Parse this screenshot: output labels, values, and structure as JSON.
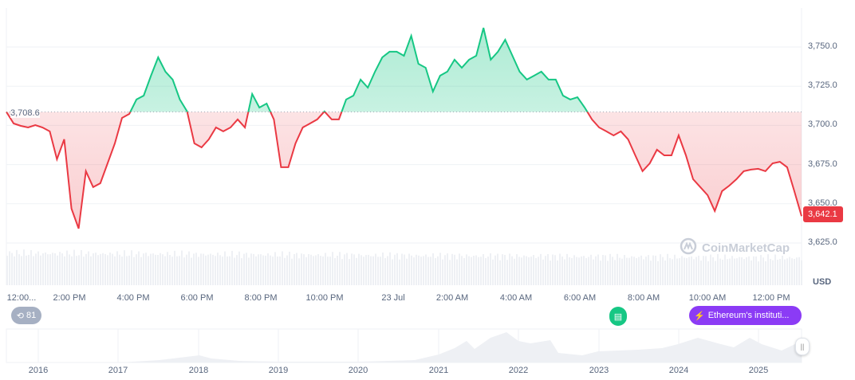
{
  "chart_data": {
    "type": "line",
    "currency_label": "USD",
    "baseline_value": 3708.6,
    "baseline_label": "3,708.6",
    "current_value": 3642.1,
    "current_label": "3,642.1",
    "ylim": [
      3615,
      3770
    ],
    "y_ticks": [
      "3,750.0",
      "3,725.0",
      "3,700.0",
      "3,675.0",
      "3,650.0",
      "3,625.0"
    ],
    "y_tick_values": [
      3750,
      3725,
      3700,
      3675,
      3650,
      3625
    ],
    "x_ticks": [
      "12:00...",
      "2:00 PM",
      "4:00 PM",
      "6:00 PM",
      "8:00 PM",
      "10:00 PM",
      "23 Jul",
      "2:00 AM",
      "4:00 AM",
      "6:00 AM",
      "8:00 AM",
      "10:00 AM",
      "12:00 PM"
    ],
    "colors": {
      "up": "#16c784",
      "down": "#ea3943"
    },
    "values": [
      3708.6,
      3701.2,
      3699.7,
      3698.7,
      3700.2,
      3698.7,
      3696.2,
      3678.4,
      3691.1,
      3646.9,
      3634.2,
      3670.8,
      3660.6,
      3663.1,
      3675.8,
      3688.5,
      3704.8,
      3707.3,
      3716.5,
      3719.0,
      3731.7,
      3743.4,
      3734.3,
      3729.2,
      3716.5,
      3708.9,
      3688.5,
      3686.0,
      3691.1,
      3698.7,
      3696.2,
      3698.7,
      3703.8,
      3698.7,
      3720.0,
      3711.4,
      3713.9,
      3703.8,
      3673.3,
      3673.3,
      3688.5,
      3698.7,
      3701.2,
      3703.8,
      3708.9,
      3703.8,
      3703.8,
      3716.5,
      3719.0,
      3729.2,
      3724.1,
      3734.3,
      3743.4,
      3747.0,
      3747.0,
      3744.4,
      3757.1,
      3739.3,
      3736.8,
      3721.6,
      3731.7,
      3734.3,
      3741.9,
      3736.8,
      3741.9,
      3744.4,
      3762.2,
      3741.9,
      3747.0,
      3754.6,
      3744.4,
      3734.3,
      3729.2,
      3731.7,
      3734.3,
      3729.2,
      3729.2,
      3719.0,
      3716.5,
      3718.0,
      3711.4,
      3703.8,
      3698.7,
      3696.2,
      3693.6,
      3696.2,
      3691.1,
      3680.9,
      3670.8,
      3675.8,
      3684.5,
      3680.9,
      3680.9,
      3693.6,
      3680.9,
      3665.7,
      3660.6,
      3655.5,
      3645.4,
      3658.1,
      3661.6,
      3665.7,
      3670.8,
      3671.8,
      3672.3,
      3670.8,
      3675.8,
      3676.8,
      3673.3,
      3658.1,
      3642.1
    ]
  },
  "navigator": {
    "years": [
      "2016",
      "2017",
      "2018",
      "2019",
      "2020",
      "2021",
      "2022",
      "2023",
      "2024",
      "2025"
    ]
  },
  "badges": {
    "history_count": "81",
    "news_label": "Ethereum's instituti...",
    "history_icon": "history-icon",
    "news_icon": "lightning-icon",
    "doc_icon": "document-icon"
  },
  "watermark": "CoinMarketCap"
}
